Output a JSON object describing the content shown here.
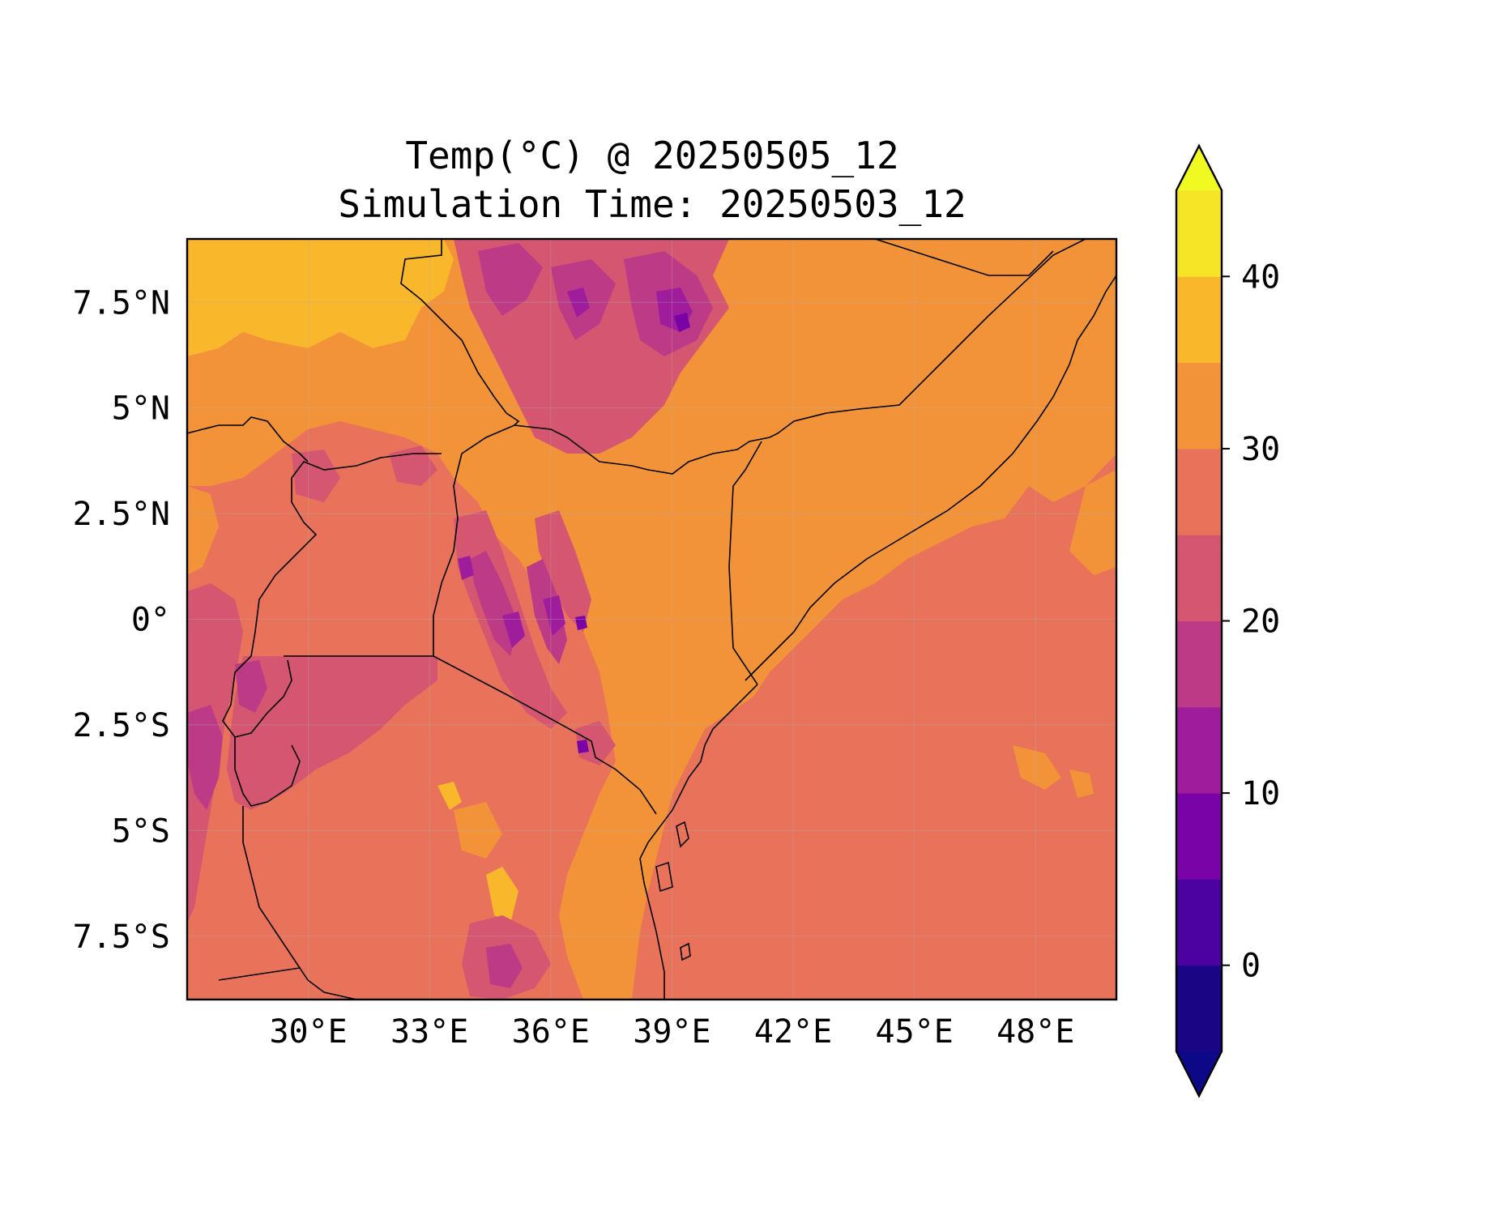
{
  "title": {
    "line1": "Temp(°C) @ 20250505_12",
    "line2": "Simulation Time: 20250503_12"
  },
  "map": {
    "lon_range": [
      27,
      50
    ],
    "lat_range": [
      -9,
      9
    ],
    "x_ticks": [
      {
        "value": 30,
        "label": "30°E"
      },
      {
        "value": 33,
        "label": "33°E"
      },
      {
        "value": 36,
        "label": "36°E"
      },
      {
        "value": 39,
        "label": "39°E"
      },
      {
        "value": 42,
        "label": "42°E"
      },
      {
        "value": 45,
        "label": "45°E"
      },
      {
        "value": 48,
        "label": "48°E"
      }
    ],
    "y_ticks": [
      {
        "value": 7.5,
        "label": "7.5°N"
      },
      {
        "value": 5,
        "label": "5°N"
      },
      {
        "value": 2.5,
        "label": "2.5°N"
      },
      {
        "value": 0,
        "label": "0°"
      },
      {
        "value": -2.5,
        "label": "2.5°S"
      },
      {
        "value": -5,
        "label": "5°S"
      },
      {
        "value": -7.5,
        "label": "7.5°S"
      }
    ],
    "colors": {
      "background": "#e8735a",
      "band_35_40": "#f9b72c",
      "band_30_35": "#f39339",
      "band_25_30": "#e8735a",
      "band_20_25": "#d45670",
      "band_15_20": "#bd3a86",
      "band_10_15": "#9f1c9d",
      "band_5_10": "#7a03a8",
      "border": "#000000"
    }
  },
  "colorbar": {
    "levels": [
      -5,
      0,
      5,
      10,
      15,
      20,
      25,
      30,
      35,
      40,
      45
    ],
    "colors": [
      "#1a0584",
      "#4c02a1",
      "#7a03a8",
      "#9f1c9d",
      "#bd3a86",
      "#d45670",
      "#e8735a",
      "#f39339",
      "#f9b72c",
      "#f6e526"
    ],
    "under_color": "#0d0887",
    "over_color": "#f0f921",
    "tick_labels": [
      {
        "value": 0,
        "label": "0"
      },
      {
        "value": 10,
        "label": "10"
      },
      {
        "value": 20,
        "label": "20"
      },
      {
        "value": 30,
        "label": "30"
      },
      {
        "value": 40,
        "label": "40"
      }
    ]
  }
}
